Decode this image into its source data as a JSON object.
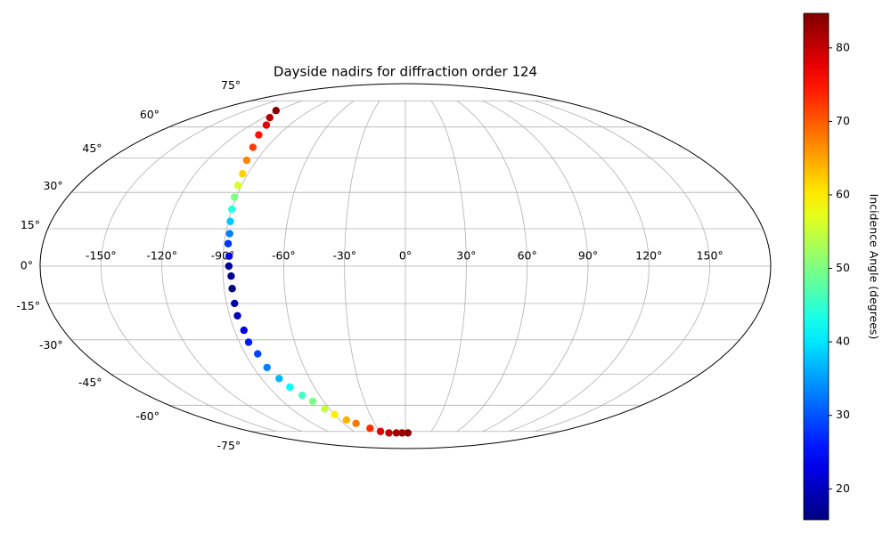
{
  "chart_data": {
    "type": "scatter",
    "projection": "mollweide",
    "title": "Dayside nadirs for diffraction order 124",
    "x": [
      -122,
      -115,
      -108,
      -104,
      -99,
      -96,
      -93,
      -92,
      -91,
      -90,
      -89,
      -88,
      -88,
      -87,
      -87,
      -86,
      -86,
      -86,
      -86,
      -85,
      -85,
      -83,
      -82,
      -79,
      -76,
      -72,
      -68,
      -64,
      -60,
      -54,
      -48,
      -38,
      -29,
      -20,
      -11,
      -4,
      3
    ],
    "y": [
      69,
      65,
      61,
      56,
      50,
      44,
      38,
      33,
      28,
      23,
      18,
      13,
      9,
      4,
      0,
      -4,
      -9,
      -15,
      -20,
      -26,
      -31,
      -36,
      -42,
      -47,
      -51,
      -55,
      -58,
      -62,
      -65,
      -68,
      -70,
      -73,
      -75,
      -76,
      -76,
      -76,
      -76
    ],
    "values": [
      84,
      81,
      78,
      75,
      72,
      67,
      62,
      56,
      50,
      44,
      38,
      33,
      28,
      23,
      18,
      17,
      16,
      18,
      20,
      23,
      26,
      29,
      33,
      37,
      42,
      46,
      50,
      55,
      60,
      64,
      68,
      73,
      78,
      80,
      82,
      83,
      84
    ],
    "colormap": "jet",
    "clim": [
      15.8,
      84.7
    ],
    "colorbar_label": "Incidence Angle (degrees)",
    "colorbar_ticks": [
      20,
      30,
      40,
      50,
      60,
      70,
      80
    ],
    "xlim": [
      -180,
      180
    ],
    "ylim": [
      -90,
      90
    ],
    "xticks": [
      {
        "value": -150,
        "label": "-150°"
      },
      {
        "value": -120,
        "label": "-120°"
      },
      {
        "value": -90,
        "label": "-90°"
      },
      {
        "value": -60,
        "label": "-60°"
      },
      {
        "value": -30,
        "label": "-30°"
      },
      {
        "value": 0,
        "label": "0°"
      },
      {
        "value": 30,
        "label": "30°"
      },
      {
        "value": 60,
        "label": "60°"
      },
      {
        "value": 90,
        "label": "90°"
      },
      {
        "value": 120,
        "label": "120°"
      },
      {
        "value": 150,
        "label": "150°"
      }
    ],
    "yticks": [
      {
        "value": -75,
        "label": "-75°"
      },
      {
        "value": -60,
        "label": "-60°"
      },
      {
        "value": -45,
        "label": "-45°"
      },
      {
        "value": -30,
        "label": "-30°"
      },
      {
        "value": -15,
        "label": "-15°"
      },
      {
        "value": 0,
        "label": "0°"
      },
      {
        "value": 15,
        "label": "15°"
      },
      {
        "value": 30,
        "label": "30°"
      },
      {
        "value": 45,
        "label": "45°"
      },
      {
        "value": 60,
        "label": "60°"
      },
      {
        "value": 75,
        "label": "75°"
      }
    ],
    "grid": true
  }
}
